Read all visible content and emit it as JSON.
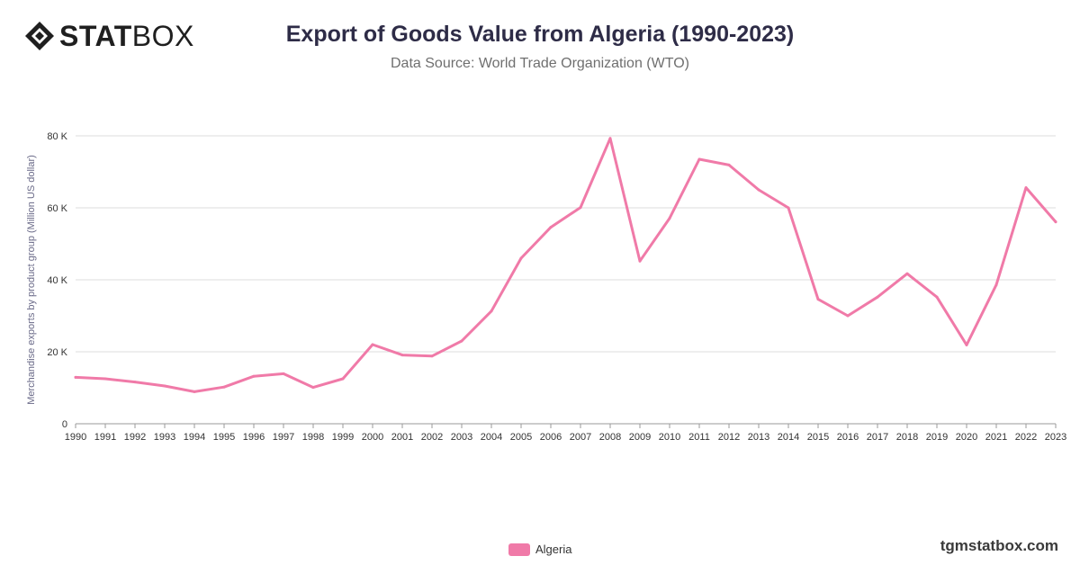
{
  "header": {
    "logo_stat": "STAT",
    "logo_box": "BOX",
    "title": "Export of Goods Value from Algeria (1990-2023)",
    "subtitle": "Data Source: World Trade Organization (WTO)"
  },
  "footer": {
    "watermark": "tgmstatbox.com"
  },
  "colors": {
    "line": "#f07aa8",
    "grid": "#dddddd",
    "axis_text": "#333333",
    "ylabel_text": "#6a6a88"
  },
  "chart_data": {
    "type": "line",
    "title": "Export of Goods Value from Algeria (1990-2023)",
    "subtitle": "Data Source: World Trade Organization (WTO)",
    "xlabel": "",
    "ylabel": "Merchandise exports by product group (Million US dollar)",
    "ylim": [
      0,
      80000
    ],
    "yticks": [
      0,
      20000,
      40000,
      60000,
      80000
    ],
    "ytick_labels": [
      "0",
      "20 K",
      "40 K",
      "60 K",
      "80 K"
    ],
    "grid": true,
    "legend_position": "bottom-center",
    "x": [
      "1990",
      "1991",
      "1992",
      "1993",
      "1994",
      "1995",
      "1996",
      "1997",
      "1998",
      "1999",
      "2000",
      "2001",
      "2002",
      "2003",
      "2004",
      "2005",
      "2006",
      "2007",
      "2008",
      "2009",
      "2010",
      "2011",
      "2012",
      "2013",
      "2014",
      "2015",
      "2016",
      "2017",
      "2018",
      "2019",
      "2020",
      "2021",
      "2022",
      "2023"
    ],
    "series": [
      {
        "name": "Algeria",
        "color": "#f07aa8",
        "values": [
          12900,
          12500,
          11600,
          10500,
          8900,
          10200,
          13200,
          13900,
          10100,
          12500,
          22000,
          19100,
          18800,
          23000,
          31300,
          46000,
          54600,
          60100,
          79300,
          45200,
          57100,
          73500,
          71900,
          65000,
          60000,
          34600,
          30000,
          35200,
          41700,
          35200,
          21900,
          38600,
          65600,
          56100
        ]
      }
    ]
  }
}
